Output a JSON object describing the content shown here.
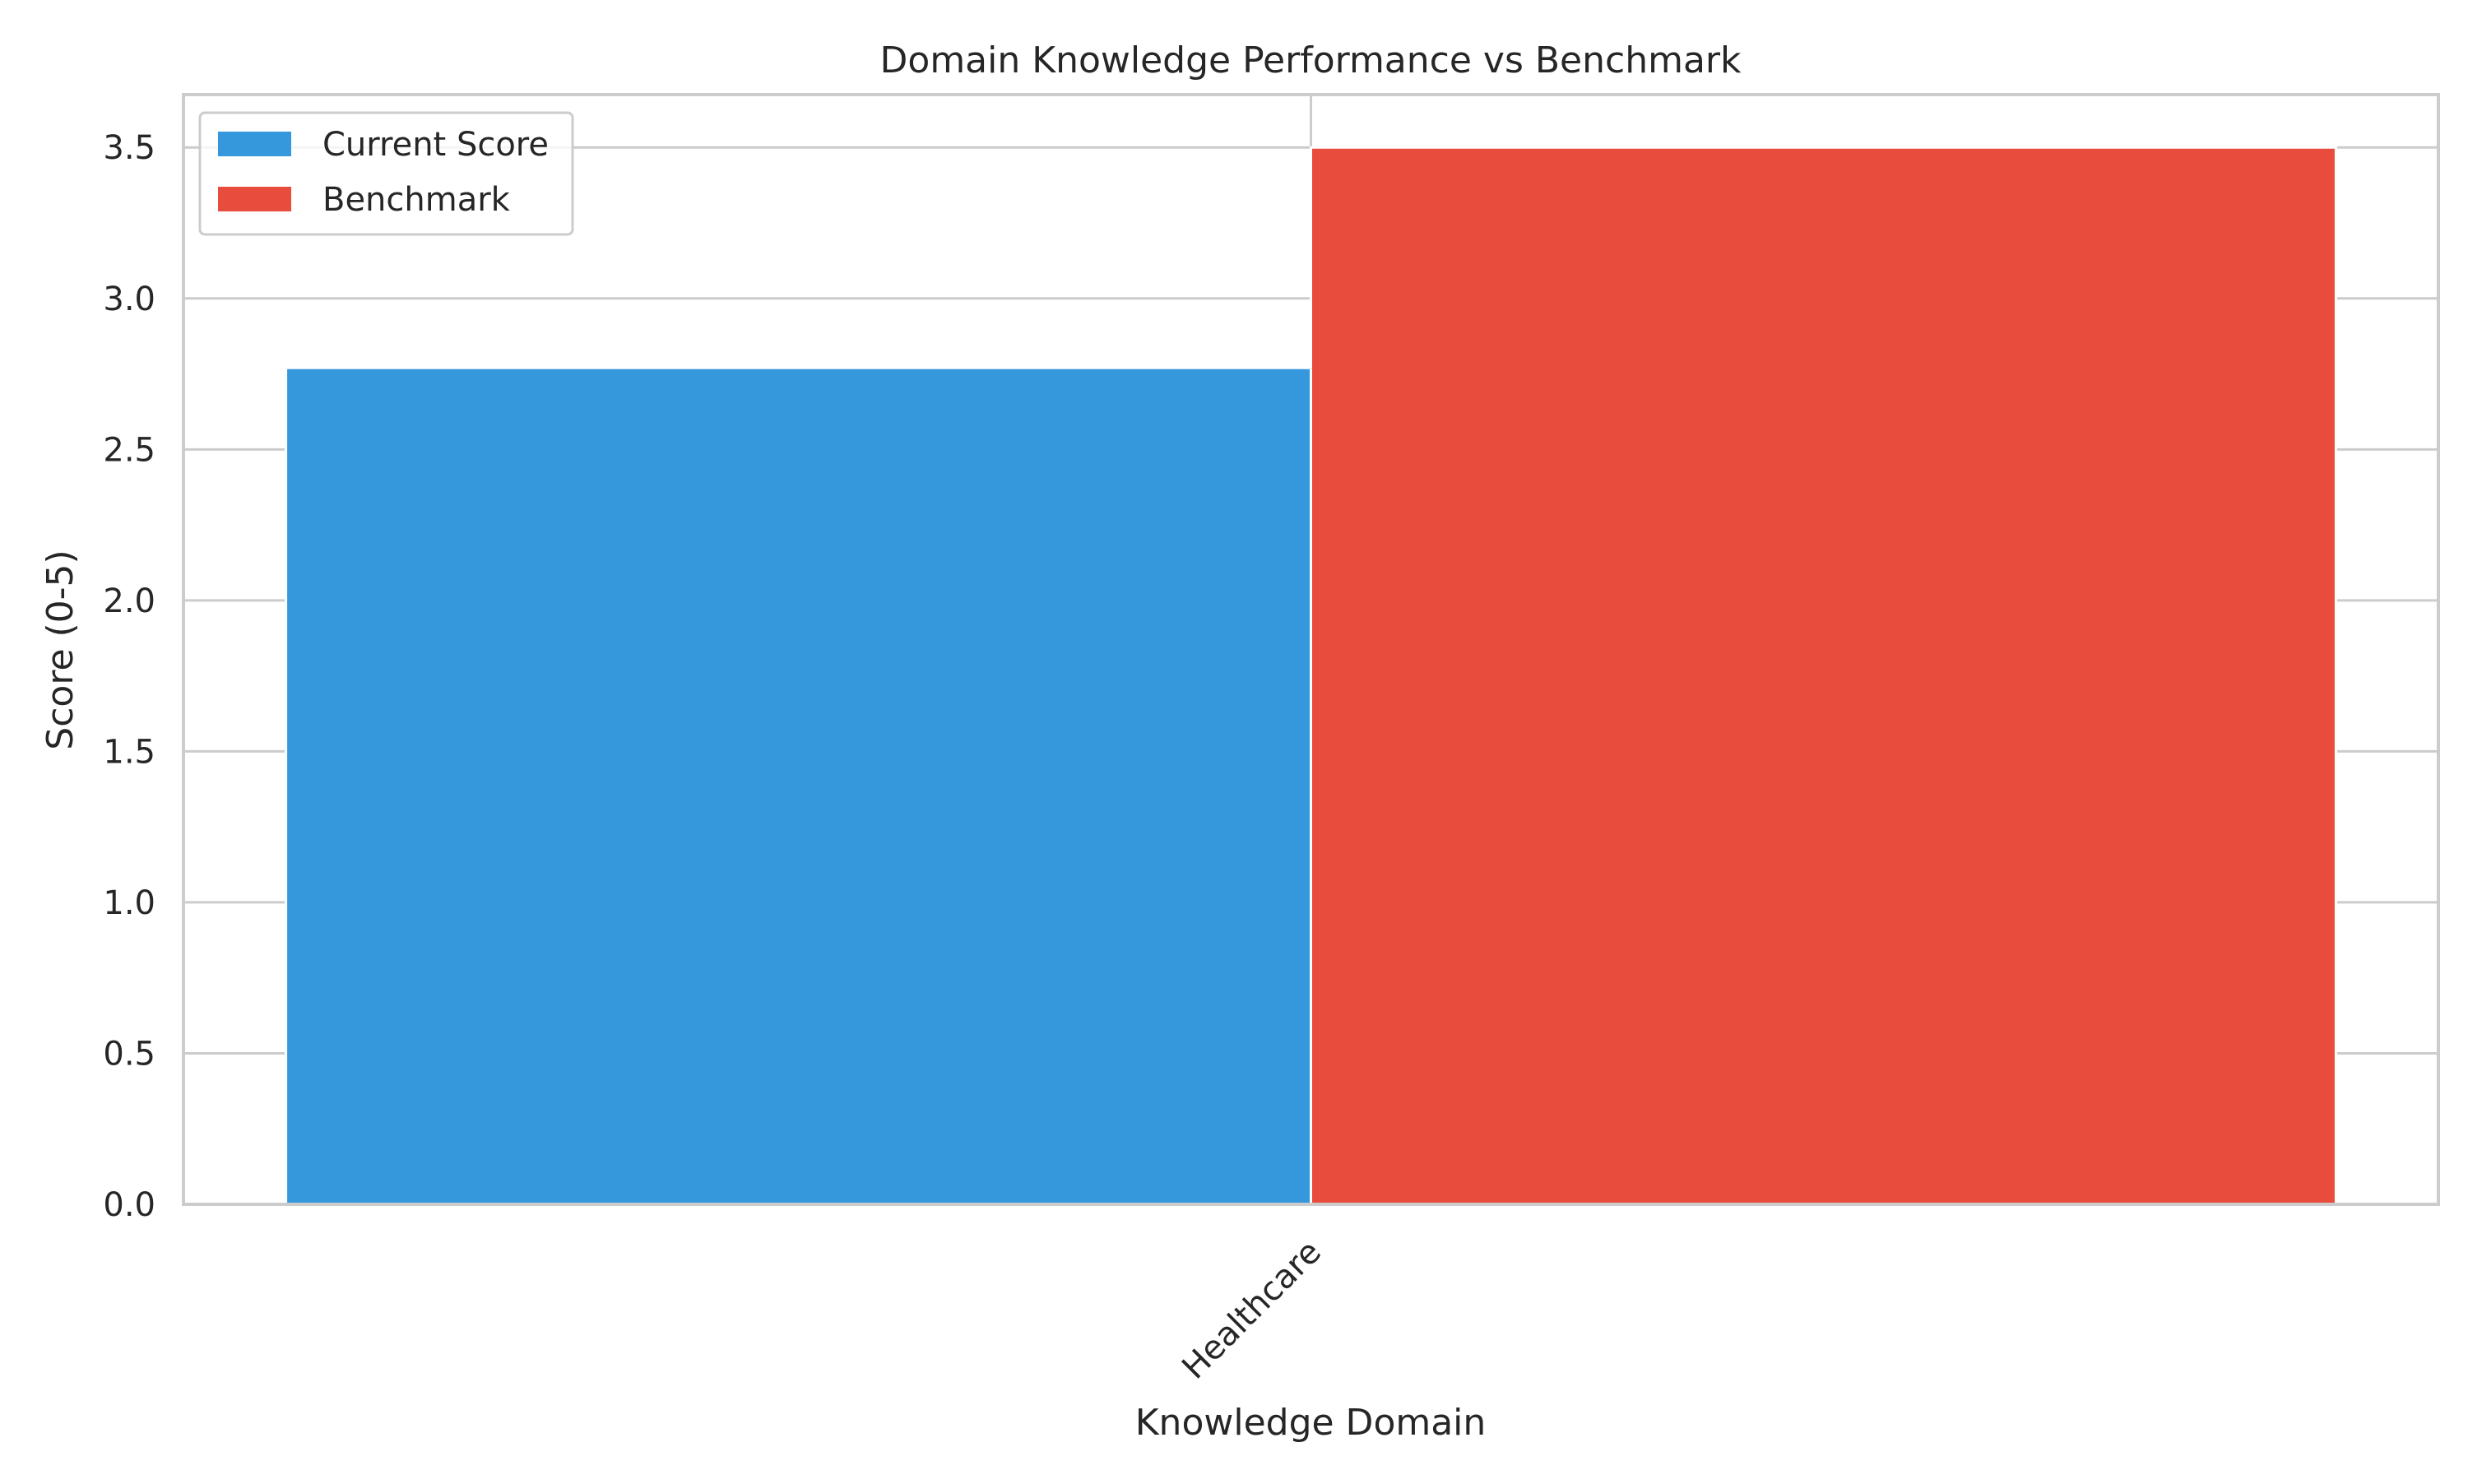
{
  "chart_data": {
    "type": "bar",
    "title": "Domain Knowledge Performance vs Benchmark",
    "xlabel": "Knowledge Domain",
    "ylabel": "Score (0-5)",
    "categories": [
      "Healthcare"
    ],
    "series": [
      {
        "name": "Current Score",
        "values": [
          2.77
        ],
        "color": "#3598dc"
      },
      {
        "name": "Benchmark",
        "values": [
          3.5
        ],
        "color": "#e74c3c"
      }
    ],
    "ylim": [
      0,
      3.675
    ],
    "yticks": [
      0.0,
      0.5,
      1.0,
      1.5,
      2.0,
      2.5,
      3.0,
      3.5
    ],
    "ytick_labels": [
      "0.0",
      "0.5",
      "1.0",
      "1.5",
      "2.0",
      "2.5",
      "3.0",
      "3.5"
    ],
    "grid": true,
    "legend_position": "top-left",
    "colors": {
      "grid": "#cccccc",
      "frame": "#cccccc",
      "text": "#262626"
    }
  }
}
